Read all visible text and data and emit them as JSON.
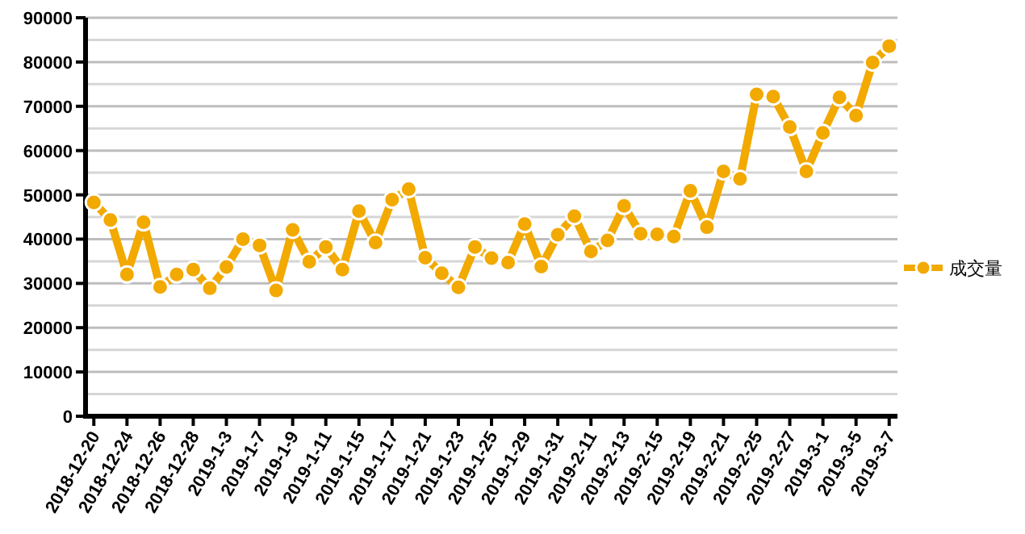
{
  "chart_data": {
    "type": "line",
    "categories": [
      "2018-12-20",
      null,
      "2018-12-24",
      null,
      "2018-12-26",
      null,
      "2018-12-28",
      null,
      "2019-1-3",
      null,
      "2019-1-7",
      null,
      "2019-1-9",
      null,
      "2019-1-11",
      null,
      "2019-1-15",
      null,
      "2019-1-17",
      null,
      "2019-1-21",
      null,
      "2019-1-23",
      null,
      "2019-1-25",
      null,
      "2019-1-29",
      null,
      "2019-1-31",
      null,
      "2019-2-11",
      null,
      "2019-2-13",
      null,
      "2019-2-15",
      null,
      "2019-2-19",
      null,
      "2019-2-21",
      null,
      "2019-2-25",
      null,
      "2019-2-27",
      null,
      "2019-3-1",
      null,
      "2019-3-5",
      null,
      "2019-3-7"
    ],
    "series": [
      {
        "name": "成交量",
        "color": "#f2a900",
        "values": [
          48300,
          44300,
          32000,
          43800,
          29200,
          32000,
          33100,
          28900,
          33700,
          40000,
          38600,
          28400,
          42100,
          34900,
          38200,
          33100,
          46300,
          39200,
          48900,
          51300,
          35800,
          32300,
          29100,
          38200,
          35700,
          34700,
          43400,
          33800,
          41000,
          45200,
          37200,
          39700,
          47500,
          41200,
          41100,
          40600,
          50900,
          42700,
          55300,
          53600,
          72700,
          72200,
          65300,
          55300,
          64000,
          72000,
          67900,
          79900,
          83600
        ]
      }
    ],
    "ylim": [
      0,
      90000
    ],
    "yticks": [
      0,
      10000,
      20000,
      30000,
      40000,
      50000,
      60000,
      70000,
      80000,
      90000
    ],
    "grid": "y",
    "legend": "right",
    "marker": "circle",
    "line_style": "solid"
  }
}
